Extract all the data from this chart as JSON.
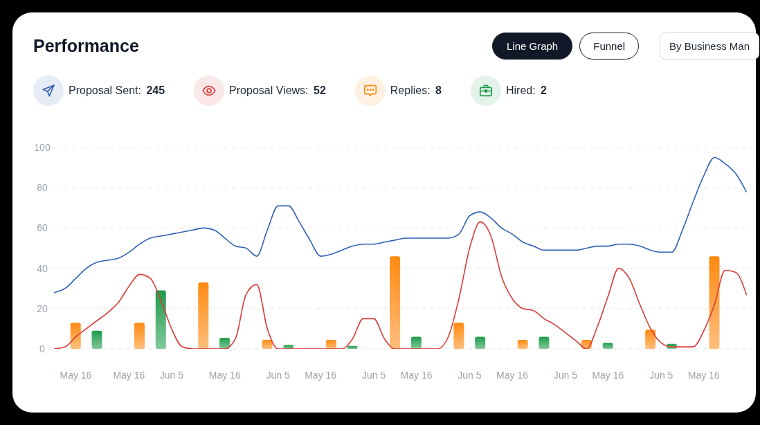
{
  "chart_data": {
    "type": "bar",
    "title": "Performance",
    "annotations": [
      "Line Graph",
      "Funnel",
      "By Business Man"
    ],
    "categories": [
      null,
      null,
      "May 16",
      null,
      null,
      null,
      null,
      "May 16",
      null,
      null,
      null,
      "Jun 5",
      null,
      null,
      null,
      null,
      "May 16",
      null,
      null,
      null,
      null,
      "Jun 5",
      null,
      null,
      null,
      "May 16",
      null,
      null,
      null,
      null,
      "Jun 5",
      null,
      null,
      null,
      "May 16",
      null,
      null,
      null,
      null,
      "Jun 5",
      null,
      null,
      null,
      "May 16",
      null,
      null,
      null,
      null,
      "Jun 5",
      null,
      null,
      null,
      "May 16",
      null,
      null,
      null,
      null,
      "Jun 5",
      null,
      null,
      null,
      "May 16",
      null,
      null,
      null,
      null
    ],
    "series": [
      {
        "name": "Proposal Sent: 245",
        "type": "line",
        "color": "#2f5fb5",
        "values": [
          28,
          30,
          35,
          40,
          43,
          44,
          45,
          48,
          52,
          55,
          56,
          57,
          58,
          59,
          60,
          59,
          55,
          51,
          50,
          46,
          59,
          71,
          71,
          63,
          54,
          46,
          47,
          49,
          51,
          52,
          52,
          53,
          54,
          55,
          55,
          55,
          55,
          55,
          57,
          66,
          68,
          65,
          60,
          57,
          53,
          51,
          49,
          49,
          49,
          49,
          50,
          51,
          51,
          52,
          52,
          51,
          49,
          48,
          48,
          59,
          73,
          86,
          95,
          92,
          87,
          78
        ]
      },
      {
        "name": "Proposal Views: 52",
        "type": "line",
        "color": "#d93b36",
        "values": [
          0,
          1,
          6,
          10,
          14,
          18,
          23,
          31,
          37,
          35,
          24,
          10,
          1,
          0,
          0,
          0,
          0,
          5,
          27,
          32,
          10,
          0,
          0,
          0,
          0,
          0,
          0,
          0,
          5,
          15,
          15,
          5,
          0,
          0,
          0,
          0,
          0,
          6,
          25,
          50,
          63,
          56,
          36,
          25,
          20,
          19,
          15,
          12,
          8,
          4,
          0,
          11,
          26,
          40,
          35,
          22,
          10,
          3,
          1,
          1,
          1,
          9,
          22,
          39,
          38,
          27
        ]
      },
      {
        "name": "Replies: 8",
        "color": "#fd8a12",
        "values": [
          null,
          null,
          13,
          null,
          null,
          null,
          null,
          null,
          13,
          null,
          null,
          null,
          null,
          null,
          33,
          null,
          null,
          null,
          null,
          null,
          4.5,
          null,
          null,
          null,
          null,
          null,
          4.5,
          null,
          null,
          null,
          null,
          null,
          46,
          null,
          null,
          null,
          null,
          null,
          13,
          null,
          null,
          null,
          null,
          null,
          4.5,
          null,
          null,
          null,
          null,
          null,
          4.5,
          null,
          null,
          null,
          null,
          null,
          9.5,
          null,
          null,
          null,
          null,
          null,
          46,
          null,
          null,
          null
        ]
      },
      {
        "name": "Hired: 2",
        "color": "#1e9b4b",
        "values": [
          null,
          null,
          null,
          null,
          9,
          null,
          null,
          null,
          null,
          null,
          29,
          null,
          null,
          null,
          null,
          null,
          5.5,
          null,
          null,
          null,
          null,
          null,
          2,
          null,
          null,
          null,
          null,
          null,
          1.5,
          null,
          null,
          null,
          null,
          null,
          6,
          null,
          null,
          null,
          null,
          null,
          6,
          null,
          null,
          null,
          null,
          null,
          6,
          null,
          null,
          null,
          null,
          null,
          3,
          null,
          null,
          null,
          null,
          null,
          2.5,
          null,
          null,
          null,
          null,
          null,
          null,
          null
        ]
      }
    ],
    "stacked": true,
    "ylim": [
      0,
      100
    ],
    "yticks": [
      0,
      20,
      40,
      60,
      80,
      100
    ],
    "grid": "y",
    "legend": "top left"
  }
}
